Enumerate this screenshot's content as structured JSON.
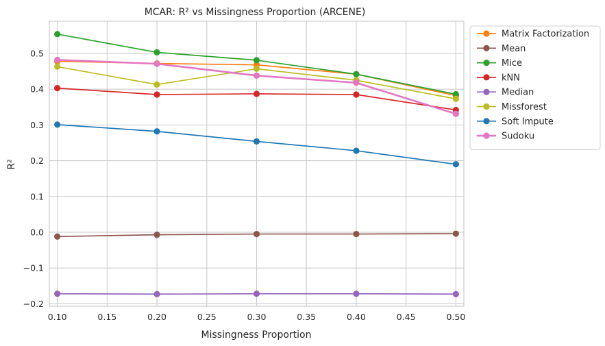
{
  "chart_data": {
    "type": "line",
    "title": "MCAR: R² vs Missingness Proportion (ARCENE)",
    "xlabel": "Missingness Proportion",
    "ylabel": "R²",
    "xlim": [
      0.092,
      0.508
    ],
    "ylim": [
      -0.207,
      0.59
    ],
    "xticks": [
      "0.10",
      "0.15",
      "0.20",
      "0.25",
      "0.30",
      "0.35",
      "0.40",
      "0.45",
      "0.50"
    ],
    "yticks": [
      "−0.2",
      "−0.1",
      "0.0",
      "0.1",
      "0.2",
      "0.3",
      "0.4",
      "0.5"
    ],
    "grid": true,
    "legend_position": "outside-top-right",
    "x": [
      0.1,
      0.2,
      0.3,
      0.4,
      0.5
    ],
    "series": [
      {
        "name": "Matrix Factorization",
        "color": "#ff7f0e",
        "values": [
          0.478,
          0.472,
          0.468,
          0.442,
          0.382
        ]
      },
      {
        "name": "Mean",
        "color": "#8c564b",
        "values": [
          -0.012,
          -0.007,
          -0.005,
          -0.005,
          -0.004
        ]
      },
      {
        "name": "Mice",
        "color": "#2ca02c",
        "values": [
          0.554,
          0.503,
          0.481,
          0.442,
          0.386
        ]
      },
      {
        "name": "kNN",
        "color": "#d62728",
        "values": [
          0.403,
          0.385,
          0.387,
          0.385,
          0.342
        ]
      },
      {
        "name": "Median",
        "color": "#9467bd",
        "values": [
          -0.172,
          -0.173,
          -0.172,
          -0.172,
          -0.173
        ]
      },
      {
        "name": "Missforest",
        "color": "#bcbd22",
        "values": [
          0.463,
          0.413,
          0.457,
          0.425,
          0.373
        ]
      },
      {
        "name": "Soft Impute",
        "color": "#1f77b4",
        "values": [
          0.301,
          0.282,
          0.254,
          0.228,
          0.19
        ]
      },
      {
        "name": "Sudoku",
        "color": "#e377c2",
        "values": [
          0.482,
          0.471,
          0.438,
          0.418,
          0.331
        ],
        "highlight": true
      }
    ]
  }
}
